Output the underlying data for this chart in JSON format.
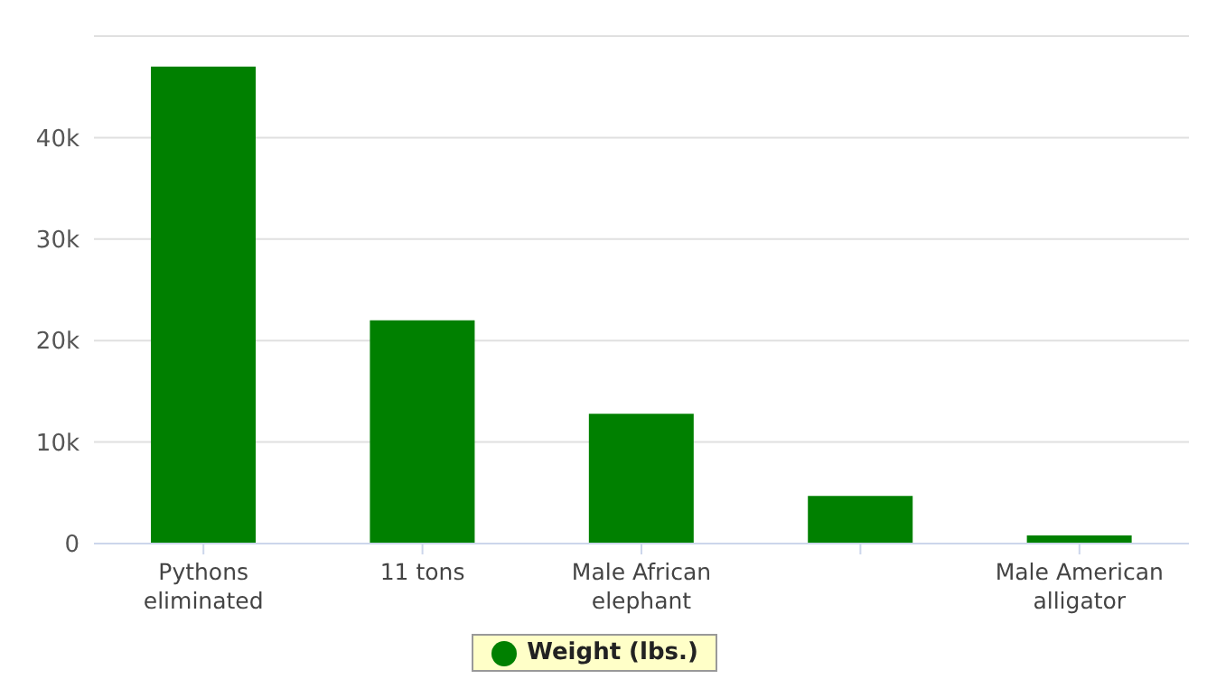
{
  "chart_data": {
    "type": "bar",
    "categories": [
      "Pythons eliminated",
      "11 tons",
      "Male African elephant",
      null,
      "Male American alligator"
    ],
    "series": [
      {
        "name": "Weight (lbs.)",
        "color": "#008000",
        "values": [
          47000,
          22000,
          12800,
          4700,
          800
        ]
      }
    ],
    "ylim": [
      0,
      50000
    ],
    "yticks": [
      {
        "value": 0,
        "label": "0"
      },
      {
        "value": 10000,
        "label": "10k"
      },
      {
        "value": 20000,
        "label": "20k"
      },
      {
        "value": 30000,
        "label": "30k"
      },
      {
        "value": 40000,
        "label": "40k"
      }
    ],
    "grid": "y",
    "legend": "bottom"
  }
}
